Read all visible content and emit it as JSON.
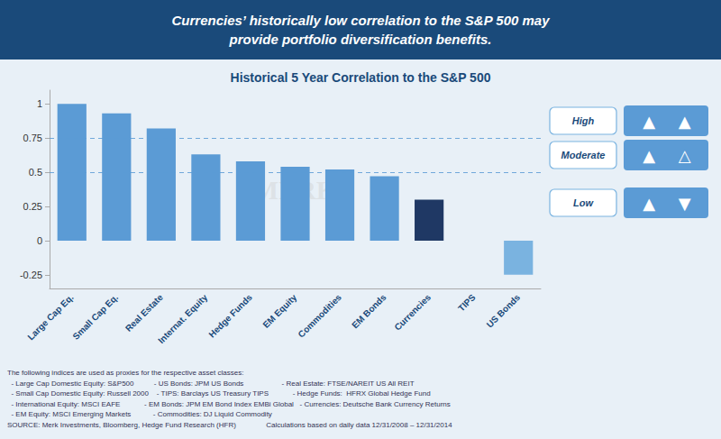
{
  "chart_data": {
    "type": "bar",
    "title": "Historical 5 Year Correlation to the S&P 500",
    "subtitle": "Currencies’ historically low correlation to the S&P 500 may\nprovide portfolio diversification benefits.",
    "categories": [
      "Large Cap Eq.",
      "Small Cap Eq.",
      "Real Estate",
      "Internat. Equity",
      "Hedge Funds",
      "EM Equity",
      "Commodities",
      "EM Bonds",
      "Currencies",
      "TIPS",
      "US Bonds"
    ],
    "values": [
      1.0,
      0.93,
      0.82,
      0.63,
      0.58,
      0.54,
      0.52,
      0.47,
      0.3,
      0.0,
      -0.25
    ],
    "colors": [
      "#5b9bd5",
      "#5b9bd5",
      "#5b9bd5",
      "#5b9bd5",
      "#5b9bd5",
      "#5b9bd5",
      "#5b9bd5",
      "#5b9bd5",
      "#1f3864",
      "#5b9bd5",
      "#7ab3e0"
    ],
    "ylim": [
      -0.35,
      1.1
    ],
    "yticks": [
      -0.25,
      0,
      0.25,
      0.5,
      0.75,
      1
    ],
    "grid": false,
    "reference_lines": [
      0.75,
      0.5
    ],
    "annotations": {
      "watermark": "MERK",
      "key": [
        {
          "label": "High",
          "symbols": [
            "▲",
            "▲"
          ]
        },
        {
          "label": "Moderate",
          "symbols": [
            "▲",
            "△"
          ]
        },
        {
          "label": "Low",
          "symbols": [
            "▲",
            "▼"
          ]
        }
      ],
      "footer": [
        "The following indices are used as proxies for the respective asset classes:",
        "  - Large Cap Domestic Equity: S&P500          - US Bonds: JPM US Bonds                   - Real Estate: FTSE/NAREIT US All REIT",
        "  - Small Cap Domestic Equity: Russell 2000    - TIPS: Barclays US Treasury TIPS            - Hedge Funds:  HFRX Global Hedge Fund",
        "  - International Equity: MSCI EAFE            - EM Bonds: JPM EM Bond Index EMBi Global   - Currencies: Deutsche Bank Currency Returns",
        "  - EM Equity: MSCI Emerging Markets           - Commodities: DJ Liquid Commodity",
        "SOURCE: Merk Investments, Bloomberg, Hedge Fund Research (HFR)               Calculations based on daily data 12/31/2008 – 12/31/2014"
      ]
    }
  }
}
